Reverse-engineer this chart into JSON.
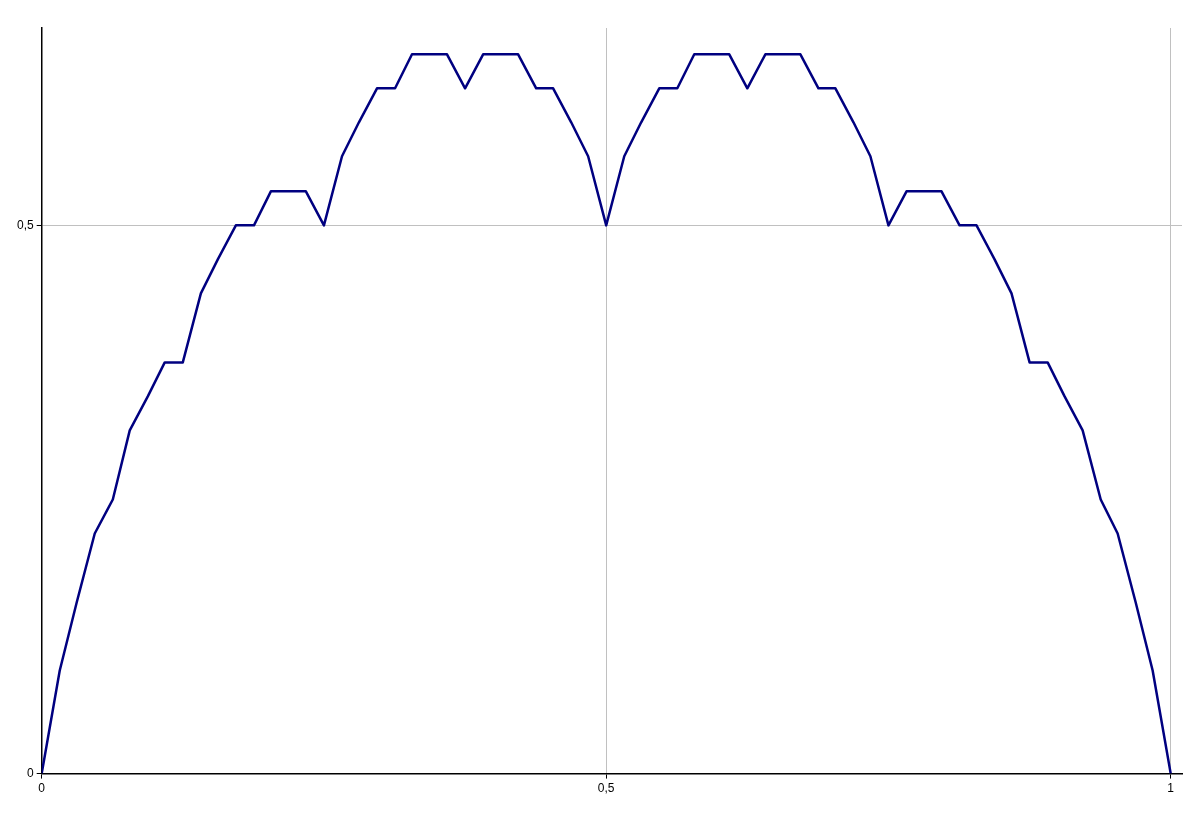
{
  "chart_data": {
    "type": "line",
    "color": "#000080",
    "x": [
      0,
      0.016,
      0.031,
      0.047,
      0.063,
      0.078,
      0.094,
      0.109,
      0.125,
      0.141,
      0.156,
      0.172,
      0.188,
      0.203,
      0.219,
      0.234,
      0.25,
      0.266,
      0.281,
      0.297,
      0.313,
      0.328,
      0.344,
      0.359,
      0.375,
      0.391,
      0.406,
      0.422,
      0.438,
      0.453,
      0.469,
      0.484,
      0.5,
      0.516,
      0.531,
      0.547,
      0.563,
      0.578,
      0.594,
      0.609,
      0.625,
      0.641,
      0.656,
      0.672,
      0.688,
      0.703,
      0.719,
      0.734,
      0.75,
      0.766,
      0.781,
      0.797,
      0.813,
      0.828,
      0.844,
      0.859,
      0.875,
      0.891,
      0.906,
      0.922,
      0.938,
      0.953,
      0.969,
      0.984,
      1
    ],
    "values": [
      0,
      0.094,
      0.156,
      0.219,
      0.25,
      0.313,
      0.344,
      0.375,
      0.375,
      0.438,
      0.469,
      0.5,
      0.5,
      0.531,
      0.531,
      0.531,
      0.5,
      0.563,
      0.594,
      0.625,
      0.625,
      0.656,
      0.656,
      0.656,
      0.625,
      0.656,
      0.656,
      0.656,
      0.625,
      0.625,
      0.594,
      0.563,
      0.5,
      0.563,
      0.594,
      0.625,
      0.625,
      0.656,
      0.656,
      0.656,
      0.625,
      0.656,
      0.656,
      0.656,
      0.625,
      0.625,
      0.594,
      0.563,
      0.5,
      0.531,
      0.531,
      0.531,
      0.5,
      0.5,
      0.469,
      0.438,
      0.375,
      0.375,
      0.344,
      0.313,
      0.25,
      0.219,
      0.156,
      0.094,
      0
    ],
    "xlim": [
      0,
      1.01
    ],
    "ylim": [
      0,
      0.68
    ],
    "xticks": [
      0,
      {
        "value": 0.5,
        "label": "0,5"
      },
      1
    ],
    "yticks": [
      0,
      {
        "value": 0.5,
        "label": "0,5"
      }
    ],
    "grid": true,
    "marker": "none",
    "line_style": "solid"
  }
}
